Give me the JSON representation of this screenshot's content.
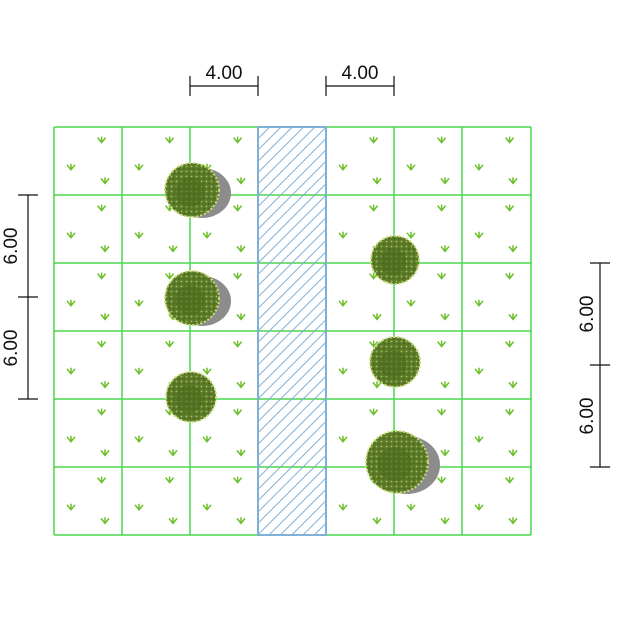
{
  "dimensions": {
    "top": [
      "4.00",
      "4.00"
    ],
    "left": [
      "6.00",
      "6.00"
    ],
    "right": [
      "6.00",
      "6.00"
    ]
  }
}
